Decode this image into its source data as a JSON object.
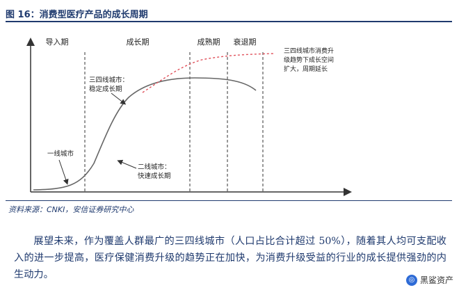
{
  "figure": {
    "title": "图 16：消费型医疗产品的成长周期",
    "source": "资料来源：CNKI，安信证券研究中心"
  },
  "diagram": {
    "phases": [
      "导入期",
      "成长期",
      "成熟期",
      "衰退期"
    ],
    "annotations": {
      "tier1": "一线城市",
      "tier2_line1": "二线城市：",
      "tier2_line2": "快速成长期",
      "tier34_line1": "三四线城市：",
      "tier34_line2": "稳定成长期",
      "upgrade_line1": "三四线城市消费升",
      "upgrade_line2": "级趋势下成长空间",
      "upgrade_line3": "扩大，周期延长"
    },
    "colors": {
      "curve": "#666666",
      "extension": "#e0505a",
      "axis": "#333333"
    }
  },
  "body": {
    "paragraph": "展望未来，作为覆盖人群最广的三四线城市（人口占比合计超过 50%），随着其人均可支配收入的进一步提高，医疗保健消费升级的趋势正在加快，为消费升级受益的行业的成长提供强劲的内生动力。"
  },
  "watermark": {
    "text": "黑鲨资产"
  }
}
